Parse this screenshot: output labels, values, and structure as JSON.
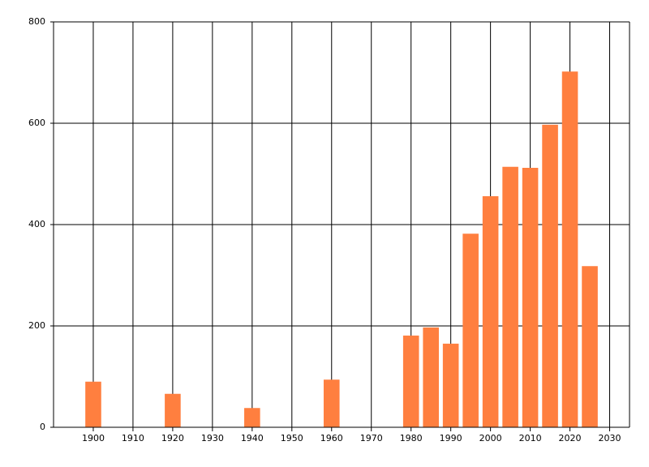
{
  "chart_data": {
    "type": "bar",
    "x": [
      1900,
      1920,
      1940,
      1960,
      1980,
      1985,
      1990,
      1995,
      2000,
      2005,
      2010,
      2015,
      2020,
      2025
    ],
    "values": [
      90,
      66,
      38,
      94,
      181,
      197,
      165,
      382,
      456,
      514,
      512,
      597,
      702,
      318
    ],
    "color": "#ff7f3f",
    "xlim": [
      1890,
      2035
    ],
    "xticks": [
      1900,
      1910,
      1920,
      1930,
      1940,
      1950,
      1960,
      1970,
      1980,
      1990,
      2000,
      2010,
      2020,
      2030
    ],
    "ylim": [
      0,
      800
    ],
    "yticks": [
      0,
      200,
      400,
      600,
      800
    ],
    "grid": true
  }
}
